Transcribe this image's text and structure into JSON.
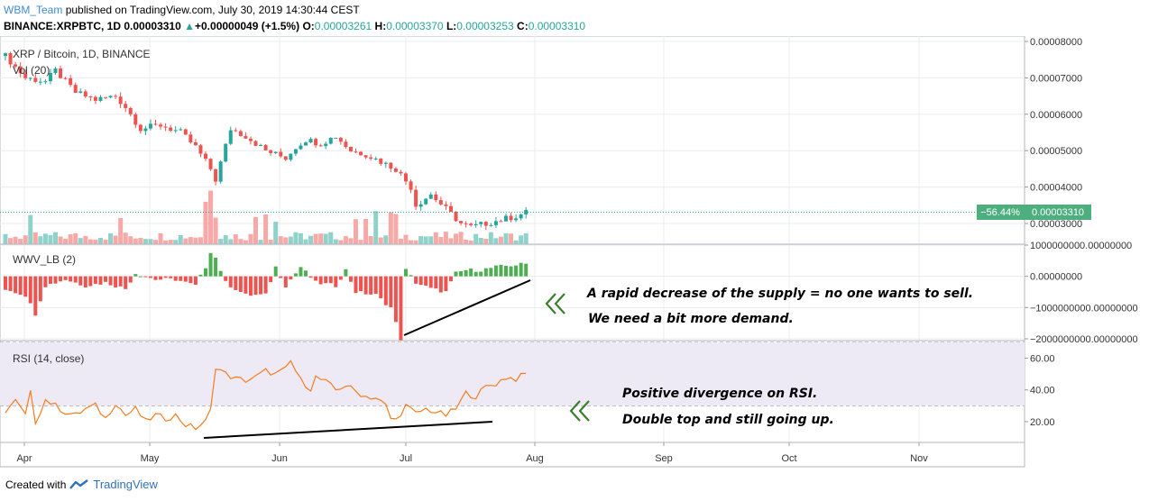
{
  "header": {
    "user": "WBM_Team",
    "published": "published on TradingView.com, July 30, 2019 14:30:44 CEST",
    "symbol": "BINANCE:XRPBTC, 1D",
    "last": "0.00003310",
    "arrow": "▲",
    "change": "+0.00000049 (+1.5%)",
    "o_label": "O:",
    "o": "0.00003261",
    "h_label": "H:",
    "h": "0.00003370",
    "l_label": "L:",
    "l": "0.00003253",
    "c_label": "C:",
    "c": "0.00003310"
  },
  "footer": {
    "created_with": "Created with",
    "brand": "TradingView"
  },
  "colors": {
    "up": "#26a69a",
    "down": "#ef5350",
    "rsi": "#f57c1f",
    "rsi_band": "#ede9f5",
    "grid": "#e8ecf1",
    "last_badge": "#4caf7d"
  },
  "chart_data": [
    {
      "type": "candlestick",
      "title": "XRP / Bitcoin, 1D, BINANCE",
      "volume_label": "Vol (20)",
      "x_ticks": [
        "Apr",
        "May",
        "Jun",
        "Jul",
        "Aug",
        "Sep",
        "Oct",
        "Nov"
      ],
      "y_ticks": [
        "0.00008000",
        "0.00007000",
        "0.00006000",
        "0.00005000",
        "0.00004000",
        "0.00003000"
      ],
      "ylim": [
        2.55e-05,
        8.1e-05
      ],
      "last_price": "0.00003310",
      "last_change": "−56.44%",
      "close_path": [
        [
          0,
          7.6
        ],
        [
          4,
          7.0
        ],
        [
          8,
          6.9
        ],
        [
          10,
          7.2
        ],
        [
          14,
          6.6
        ],
        [
          18,
          6.4
        ],
        [
          22,
          6.5
        ],
        [
          24,
          6.2
        ],
        [
          27,
          5.6
        ],
        [
          31,
          5.7
        ],
        [
          35,
          5.5
        ],
        [
          38,
          5.1
        ],
        [
          41,
          4.5
        ],
        [
          42,
          4.2
        ],
        [
          45,
          5.6
        ],
        [
          48,
          5.4
        ],
        [
          52,
          5.0
        ],
        [
          56,
          4.8
        ],
        [
          58,
          5.1
        ],
        [
          60,
          5.3
        ],
        [
          63,
          5.2
        ],
        [
          66,
          5.4
        ],
        [
          69,
          5.0
        ],
        [
          72,
          4.9
        ],
        [
          75,
          4.7
        ],
        [
          78,
          4.5
        ],
        [
          81,
          4.0
        ],
        [
          82,
          3.5
        ],
        [
          85,
          3.8
        ],
        [
          88,
          3.4
        ],
        [
          91,
          3.0
        ],
        [
          93,
          2.9
        ],
        [
          96,
          3.0
        ],
        [
          99,
          3.1
        ],
        [
          102,
          3.2
        ],
        [
          104,
          3.3
        ]
      ]
    },
    {
      "type": "bar",
      "title": "WWV_LB (2)",
      "y_ticks": [
        "1000000000.00000000",
        "0.00000000",
        "−1000000000.00000000",
        "−2000000000.00000000"
      ],
      "ylim": [
        -2000000000,
        1000000000
      ],
      "path": [
        [
          0,
          -0.4
        ],
        [
          4,
          -0.6
        ],
        [
          6,
          -1.2
        ],
        [
          8,
          -0.3
        ],
        [
          12,
          -0.1
        ],
        [
          16,
          -0.3
        ],
        [
          20,
          -0.2
        ],
        [
          24,
          -0.4
        ],
        [
          26,
          0.1
        ],
        [
          30,
          -0.1
        ],
        [
          34,
          -0.1
        ],
        [
          38,
          -0.3
        ],
        [
          40,
          0.3
        ],
        [
          41,
          0.8
        ],
        [
          42,
          0.6
        ],
        [
          44,
          -0.2
        ],
        [
          48,
          -0.6
        ],
        [
          52,
          -0.6
        ],
        [
          54,
          0.3
        ],
        [
          56,
          -0.3
        ],
        [
          59,
          0.3
        ],
        [
          62,
          -0.2
        ],
        [
          66,
          -0.3
        ],
        [
          68,
          0.2
        ],
        [
          70,
          -0.5
        ],
        [
          74,
          -0.6
        ],
        [
          77,
          -1.0
        ],
        [
          79,
          -2.0
        ],
        [
          80,
          0.2
        ],
        [
          82,
          -0.2
        ],
        [
          85,
          -0.4
        ],
        [
          88,
          -0.5
        ],
        [
          90,
          0.1
        ],
        [
          92,
          0.2
        ],
        [
          95,
          0.2
        ],
        [
          98,
          0.3
        ],
        [
          101,
          0.35
        ],
        [
          104,
          0.4
        ]
      ]
    },
    {
      "type": "line",
      "title": "RSI (14, close)",
      "y_ticks": [
        "60.00",
        "40.00",
        "20.00"
      ],
      "ylim": [
        8,
        70
      ],
      "band": [
        30,
        70
      ],
      "x_ticks": [
        "Apr",
        "May",
        "Jun",
        "Jul",
        "Aug",
        "Sep",
        "Oct",
        "Nov"
      ],
      "path": [
        [
          0,
          27
        ],
        [
          2,
          33
        ],
        [
          4,
          24
        ],
        [
          5,
          38
        ],
        [
          6,
          20
        ],
        [
          8,
          34
        ],
        [
          10,
          30
        ],
        [
          12,
          26
        ],
        [
          14,
          24
        ],
        [
          16,
          28
        ],
        [
          18,
          30
        ],
        [
          20,
          22
        ],
        [
          22,
          32
        ],
        [
          24,
          24
        ],
        [
          26,
          28
        ],
        [
          28,
          20
        ],
        [
          30,
          24
        ],
        [
          32,
          22
        ],
        [
          34,
          24
        ],
        [
          36,
          18
        ],
        [
          38,
          16
        ],
        [
          40,
          20
        ],
        [
          41,
          27
        ],
        [
          42,
          55
        ],
        [
          44,
          50
        ],
        [
          46,
          47
        ],
        [
          48,
          46
        ],
        [
          50,
          48
        ],
        [
          52,
          52
        ],
        [
          54,
          50
        ],
        [
          56,
          53
        ],
        [
          57,
          58
        ],
        [
          59,
          46
        ],
        [
          61,
          41
        ],
        [
          62,
          48
        ],
        [
          64,
          45
        ],
        [
          66,
          40
        ],
        [
          68,
          43
        ],
        [
          70,
          39
        ],
        [
          72,
          36
        ],
        [
          74,
          35
        ],
        [
          76,
          30
        ],
        [
          77,
          22
        ],
        [
          78,
          21
        ],
        [
          80,
          30
        ],
        [
          82,
          25
        ],
        [
          84,
          28
        ],
        [
          86,
          26
        ],
        [
          88,
          24
        ],
        [
          90,
          28
        ],
        [
          92,
          38
        ],
        [
          94,
          36
        ],
        [
          96,
          42
        ],
        [
          98,
          44
        ],
        [
          100,
          48
        ],
        [
          102,
          47
        ],
        [
          104,
          50
        ]
      ]
    }
  ],
  "annotations": {
    "wwv_line1": "A rapid decrease of the supply = no one wants to sell.",
    "wwv_line2": "We need a bit more demand.",
    "rsi_line1": "Positive divergence on RSI.",
    "rsi_line2": "Double top and still going up."
  }
}
